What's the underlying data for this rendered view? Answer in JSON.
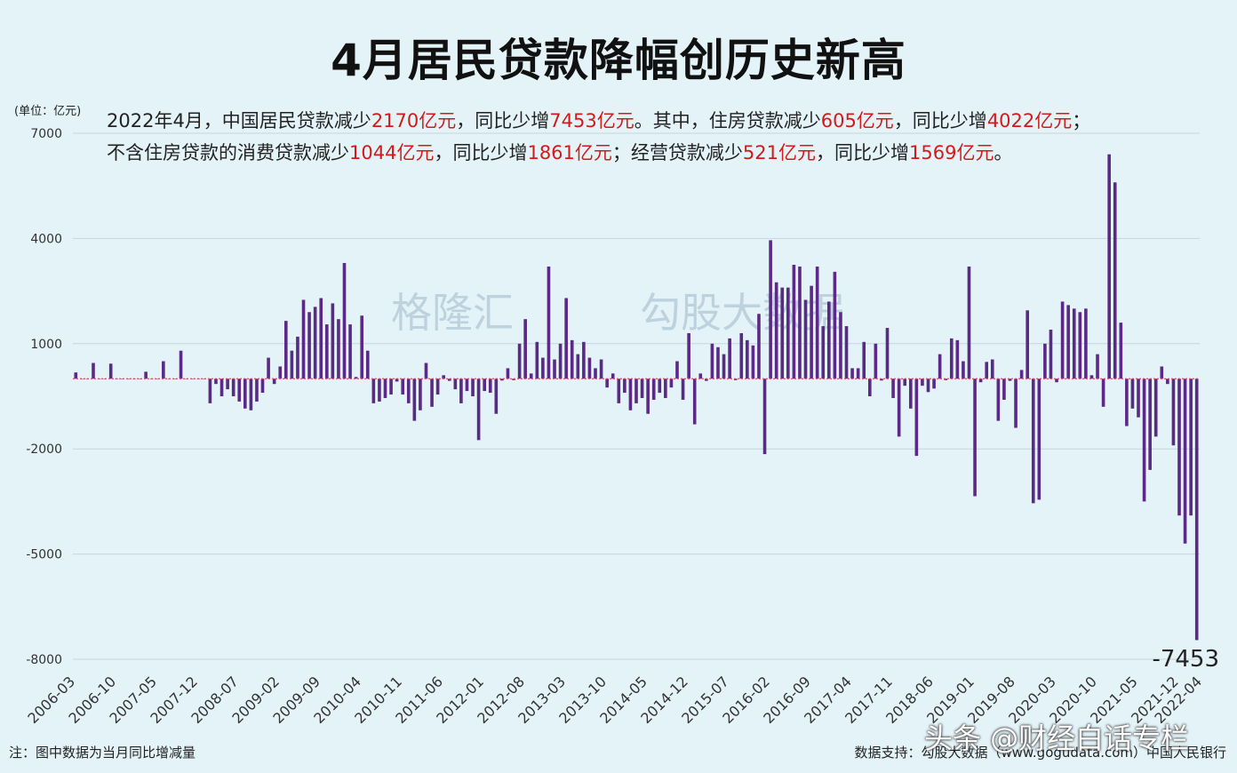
{
  "title": "4月居民贷款降幅创历史新高",
  "unit_label": "(单位：亿元)",
  "description": {
    "line1": [
      {
        "t": "2022年4月，中国居民贷款减少",
        "hl": false
      },
      {
        "t": "2170亿元",
        "hl": true
      },
      {
        "t": "，同比少增",
        "hl": false
      },
      {
        "t": "7453亿元",
        "hl": true
      },
      {
        "t": "。其中，住房贷款减少",
        "hl": false
      },
      {
        "t": "605亿元",
        "hl": true
      },
      {
        "t": "，同比少增",
        "hl": false
      },
      {
        "t": "4022亿元",
        "hl": true
      },
      {
        "t": "；",
        "hl": false
      }
    ],
    "line2": [
      {
        "t": "不含住房贷款的消费贷款减少",
        "hl": false
      },
      {
        "t": "1044亿元",
        "hl": true
      },
      {
        "t": "，同比少增",
        "hl": false
      },
      {
        "t": "1861亿元",
        "hl": true
      },
      {
        "t": "；经营贷款减少",
        "hl": false
      },
      {
        "t": "521亿元",
        "hl": true
      },
      {
        "t": "，同比少增",
        "hl": false
      },
      {
        "t": "1569亿元",
        "hl": true
      },
      {
        "t": "。",
        "hl": false
      }
    ]
  },
  "watermarks": [
    "格隆汇",
    "勾股大数据"
  ],
  "footnote": "注：图中数据为当月同比增减量",
  "source": "数据支持：勾股大数据（www.gogudata.com）中国人民银行",
  "brand_overlay": "头条 @财经白话专栏",
  "colors": {
    "bar": "#5b2a86",
    "background": "#e3f3f8",
    "highlight": "#d21a1a",
    "zero_line": "#e05050"
  },
  "chart_data": {
    "type": "bar",
    "ylim": [
      -8000,
      7000
    ],
    "yticks": [
      7000,
      4000,
      1000,
      -2000,
      -5000,
      -8000
    ],
    "grid": true,
    "xticks": [
      "2006-03",
      "2006-10",
      "2007-05",
      "2007-12",
      "2008-07",
      "2009-02",
      "2009-09",
      "2010-04",
      "2010-11",
      "2011-06",
      "2012-01",
      "2012-08",
      "2013-03",
      "2013-10",
      "2014-05",
      "2014-12",
      "2015-07",
      "2016-02",
      "2016-09",
      "2017-04",
      "2017-11",
      "2018-06",
      "2019-01",
      "2019-08",
      "2020-03",
      "2020-10",
      "2021-05",
      "2021-12",
      "2022-04"
    ],
    "annotation": "-7453",
    "start": "2006-03",
    "values": [
      180,
      0,
      0,
      450,
      0,
      0,
      430,
      0,
      0,
      0,
      0,
      0,
      200,
      0,
      0,
      500,
      0,
      0,
      800,
      0,
      0,
      0,
      0,
      -700,
      -150,
      -500,
      -300,
      -500,
      -650,
      -850,
      -900,
      -650,
      -400,
      600,
      -150,
      350,
      1650,
      800,
      1200,
      2250,
      1900,
      2050,
      2300,
      1550,
      2150,
      1700,
      3300,
      1550,
      50,
      1800,
      800,
      -700,
      -650,
      -550,
      -450,
      -80,
      -450,
      -700,
      -1200,
      -900,
      450,
      -800,
      -450,
      100,
      -60,
      -300,
      -700,
      -350,
      -500,
      -1750,
      -350,
      -400,
      -1000,
      -50,
      300,
      -40,
      1000,
      1700,
      150,
      1050,
      600,
      3200,
      550,
      1000,
      2300,
      1100,
      700,
      1050,
      600,
      300,
      550,
      -250,
      150,
      -700,
      -400,
      -900,
      -700,
      -550,
      -1000,
      -600,
      -400,
      -550,
      -250,
      500,
      -600,
      1300,
      -1300,
      150,
      -60,
      1000,
      900,
      700,
      1150,
      -40,
      1300,
      1100,
      950,
      1850,
      -2150,
      3950,
      2750,
      2600,
      2600,
      3250,
      3200,
      2250,
      2650,
      3200,
      1500,
      2200,
      3050,
      1900,
      1500,
      300,
      300,
      1050,
      -500,
      1000,
      -50,
      1450,
      -550,
      -1650,
      -200,
      -850,
      -2200,
      -200,
      -380,
      -280,
      700,
      -40,
      1150,
      1100,
      500,
      3200,
      -3350,
      -100,
      480,
      550,
      -1200,
      -600,
      -60,
      -1400,
      250,
      1950,
      -3550,
      -3450,
      1000,
      1400,
      -100,
      2200,
      2100,
      2000,
      1900,
      2000,
      100,
      700,
      -800,
      6400,
      5600,
      1600,
      -1350,
      -850,
      -1100,
      -3500,
      -2600,
      -1650,
      350,
      -150,
      -1900,
      -3900,
      -4700,
      -3900,
      -7453
    ]
  }
}
